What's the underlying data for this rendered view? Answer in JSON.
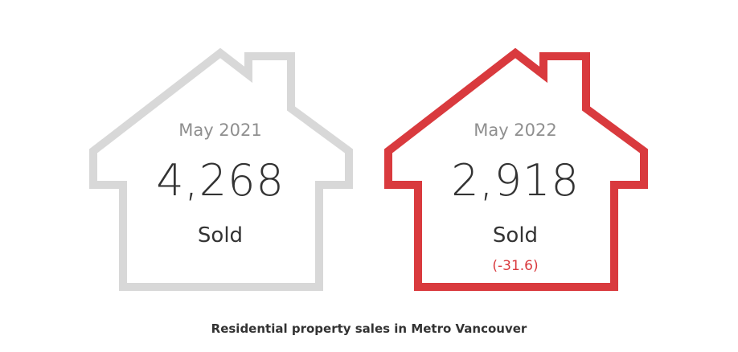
{
  "cards": [
    {
      "period": "May 2021",
      "count": "4,268",
      "metric": "Sold",
      "outline_color": "#d8d8d8"
    },
    {
      "period": "May 2022",
      "count": "2,918",
      "metric": "Sold",
      "change": "(-31.6)",
      "outline_color": "#d93a3e",
      "change_color": "#d93a3e"
    }
  ],
  "caption": "Residential property sales in Metro Vancouver"
}
